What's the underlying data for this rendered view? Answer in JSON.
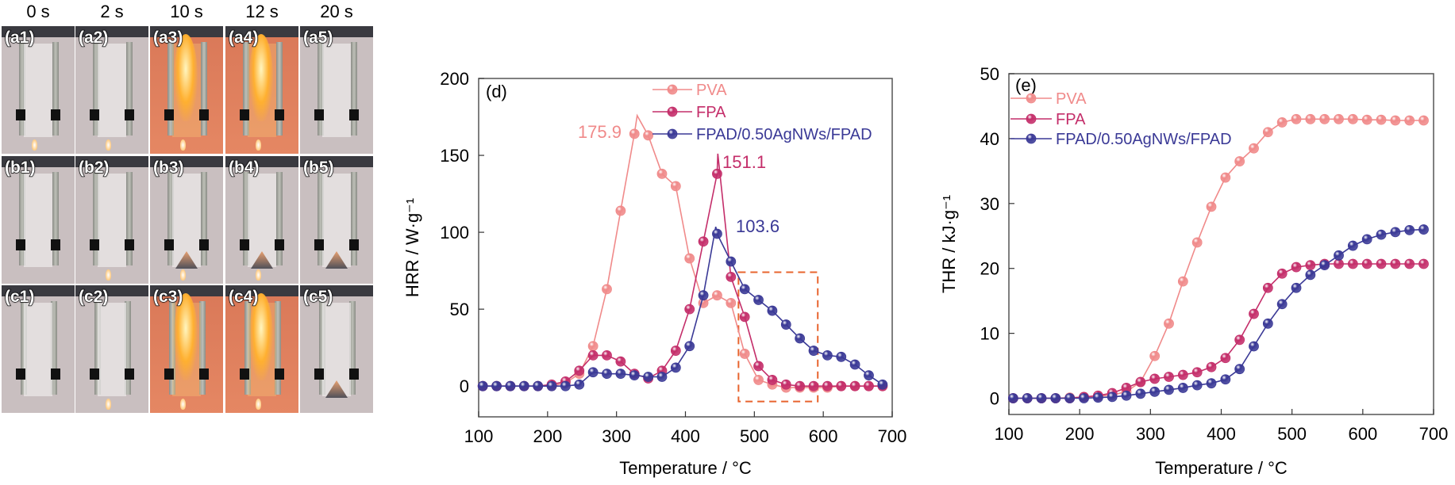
{
  "photo_panel": {
    "time_headers": [
      "0 s",
      "2 s",
      "10 s",
      "12 s",
      "20 s"
    ],
    "rows": [
      {
        "labels": [
          "(a1)",
          "(a2)",
          "(a3)",
          "(a4)",
          "(a5)"
        ]
      },
      {
        "labels": [
          "(b1)",
          "(b2)",
          "(b3)",
          "(b4)",
          "(b5)"
        ]
      },
      {
        "labels": [
          "(c1)",
          "(c2)",
          "(c3)",
          "(c4)",
          "(c5)"
        ]
      }
    ]
  },
  "colors": {
    "PVA": "#f08a8a",
    "FPA": "#c42e6a",
    "FPAD": "#3a3996",
    "highlight": "#e8642e"
  },
  "chart_data": [
    {
      "type": "line",
      "panel_label": "(d)",
      "xlabel": "Temperature / °C",
      "ylabel": "HRR / W·g⁻¹",
      "xlim": [
        100,
        700
      ],
      "ylim": [
        -20,
        200
      ],
      "xticks": [
        100,
        200,
        300,
        400,
        500,
        600,
        700
      ],
      "yticks": [
        0,
        50,
        100,
        150,
        200
      ],
      "grid": false,
      "legend_position": "top-center",
      "series": [
        {
          "name": "PVA",
          "key": "PVA",
          "points": [
            [
              106,
              0
            ],
            [
              126,
              0
            ],
            [
              146,
              0
            ],
            [
              166,
              0
            ],
            [
              186,
              0
            ],
            [
              206,
              0
            ],
            [
              226,
              2
            ],
            [
              246,
              8
            ],
            [
              266,
              26
            ],
            [
              286,
              63
            ],
            [
              306,
              114
            ],
            [
              326,
              164
            ],
            [
              346,
              163
            ],
            [
              366,
              138
            ],
            [
              386,
              130
            ],
            [
              406,
              83
            ],
            [
              426,
              54
            ],
            [
              446,
              59
            ],
            [
              466,
              54
            ],
            [
              486,
              21
            ],
            [
              506,
              4
            ],
            [
              526,
              1
            ],
            [
              546,
              -1
            ],
            [
              566,
              -1
            ],
            [
              586,
              -1
            ],
            [
              606,
              -1
            ],
            [
              626,
              0
            ],
            [
              646,
              0
            ],
            [
              666,
              0
            ],
            [
              686,
              0
            ]
          ],
          "peak": [
            330,
            175.9
          ]
        },
        {
          "name": "FPA",
          "key": "FPA",
          "points": [
            [
              106,
              0
            ],
            [
              126,
              0
            ],
            [
              146,
              0
            ],
            [
              166,
              0
            ],
            [
              186,
              0
            ],
            [
              206,
              1
            ],
            [
              226,
              3
            ],
            [
              246,
              10
            ],
            [
              266,
              20
            ],
            [
              286,
              20
            ],
            [
              306,
              16
            ],
            [
              326,
              8
            ],
            [
              346,
              5
            ],
            [
              366,
              10
            ],
            [
              386,
              23
            ],
            [
              406,
              50
            ],
            [
              426,
              94
            ],
            [
              446,
              138
            ],
            [
              466,
              71
            ],
            [
              486,
              45
            ],
            [
              506,
              13
            ],
            [
              526,
              4
            ],
            [
              546,
              1
            ],
            [
              566,
              0
            ],
            [
              586,
              0
            ],
            [
              606,
              0
            ],
            [
              626,
              0
            ],
            [
              646,
              0
            ],
            [
              666,
              0
            ],
            [
              686,
              0
            ]
          ],
          "peak": [
            447,
            151.1
          ]
        },
        {
          "name": "FPAD/0.50AgNWs/FPAD",
          "key": "FPAD",
          "points": [
            [
              106,
              0
            ],
            [
              126,
              0
            ],
            [
              146,
              0
            ],
            [
              166,
              0
            ],
            [
              186,
              0
            ],
            [
              206,
              0
            ],
            [
              226,
              0
            ],
            [
              246,
              1
            ],
            [
              266,
              9
            ],
            [
              286,
              8
            ],
            [
              306,
              8
            ],
            [
              326,
              7
            ],
            [
              346,
              6
            ],
            [
              366,
              6
            ],
            [
              386,
              12
            ],
            [
              406,
              26
            ],
            [
              426,
              59
            ],
            [
              446,
              99
            ],
            [
              466,
              81
            ],
            [
              486,
              63
            ],
            [
              506,
              56
            ],
            [
              526,
              49
            ],
            [
              546,
              40
            ],
            [
              566,
              31
            ],
            [
              586,
              23
            ],
            [
              606,
              20
            ],
            [
              626,
              19
            ],
            [
              646,
              14
            ],
            [
              666,
              7
            ],
            [
              686,
              1
            ]
          ],
          "peak": [
            444,
            103.6
          ]
        }
      ],
      "annotations": [
        {
          "text": "175.9",
          "series": "PVA"
        },
        {
          "text": "151.1",
          "series": "FPA"
        },
        {
          "text": "103.6",
          "series": "FPAD"
        }
      ],
      "highlight_box": {
        "x": [
          477,
          592
        ],
        "y": [
          -10,
          74
        ]
      }
    },
    {
      "type": "line",
      "panel_label": "(e)",
      "xlabel": "Temperature / °C",
      "ylabel": "THR / kJ·g⁻¹",
      "xlim": [
        100,
        700
      ],
      "ylim": [
        -2.5,
        50
      ],
      "xticks": [
        100,
        200,
        300,
        400,
        500,
        600,
        700
      ],
      "yticks": [
        0,
        10,
        20,
        30,
        40,
        50
      ],
      "grid": false,
      "legend_position": "top-left",
      "series": [
        {
          "name": "PVA",
          "key": "PVA",
          "points": [
            [
              106,
              0
            ],
            [
              126,
              0
            ],
            [
              146,
              0
            ],
            [
              166,
              0
            ],
            [
              186,
              0.1
            ],
            [
              206,
              0.2
            ],
            [
              226,
              0.3
            ],
            [
              246,
              0.5
            ],
            [
              266,
              1
            ],
            [
              286,
              2.5
            ],
            [
              306,
              6.5
            ],
            [
              326,
              11.5
            ],
            [
              346,
              18
            ],
            [
              366,
              24
            ],
            [
              386,
              29.5
            ],
            [
              406,
              34
            ],
            [
              426,
              36.5
            ],
            [
              446,
              38.5
            ],
            [
              466,
              41
            ],
            [
              486,
              42.5
            ],
            [
              506,
              43
            ],
            [
              526,
              43
            ],
            [
              546,
              43
            ],
            [
              566,
              43
            ],
            [
              586,
              43
            ],
            [
              606,
              42.9
            ],
            [
              626,
              42.9
            ],
            [
              646,
              42.8
            ],
            [
              666,
              42.8
            ],
            [
              686,
              42.8
            ]
          ]
        },
        {
          "name": "FPA",
          "key": "FPA",
          "points": [
            [
              106,
              0
            ],
            [
              126,
              0
            ],
            [
              146,
              0
            ],
            [
              166,
              0
            ],
            [
              186,
              0
            ],
            [
              206,
              0.2
            ],
            [
              226,
              0.4
            ],
            [
              246,
              0.8
            ],
            [
              266,
              1.6
            ],
            [
              286,
              2.5
            ],
            [
              306,
              3
            ],
            [
              326,
              3.3
            ],
            [
              346,
              3.6
            ],
            [
              366,
              4
            ],
            [
              386,
              4.8
            ],
            [
              406,
              6.2
            ],
            [
              426,
              9
            ],
            [
              446,
              13
            ],
            [
              466,
              17
            ],
            [
              486,
              19.2
            ],
            [
              506,
              20.2
            ],
            [
              526,
              20.5
            ],
            [
              546,
              20.7
            ],
            [
              566,
              20.7
            ],
            [
              586,
              20.7
            ],
            [
              606,
              20.7
            ],
            [
              626,
              20.7
            ],
            [
              646,
              20.7
            ],
            [
              666,
              20.7
            ],
            [
              686,
              20.7
            ]
          ]
        },
        {
          "name": "FPAD/0.50AgNWs/FPAD",
          "key": "FPAD",
          "points": [
            [
              106,
              0
            ],
            [
              126,
              0
            ],
            [
              146,
              0
            ],
            [
              166,
              0
            ],
            [
              186,
              0
            ],
            [
              206,
              0
            ],
            [
              226,
              0.1
            ],
            [
              246,
              0.2
            ],
            [
              266,
              0.4
            ],
            [
              286,
              0.7
            ],
            [
              306,
              1
            ],
            [
              326,
              1.3
            ],
            [
              346,
              1.6
            ],
            [
              366,
              2
            ],
            [
              386,
              2.3
            ],
            [
              406,
              2.9
            ],
            [
              426,
              4.5
            ],
            [
              446,
              8
            ],
            [
              466,
              11.5
            ],
            [
              486,
              14.5
            ],
            [
              506,
              17
            ],
            [
              526,
              19
            ],
            [
              546,
              20.5
            ],
            [
              566,
              22
            ],
            [
              586,
              23.5
            ],
            [
              606,
              24.5
            ],
            [
              626,
              25.2
            ],
            [
              646,
              25.6
            ],
            [
              666,
              25.9
            ],
            [
              686,
              26
            ]
          ]
        }
      ]
    }
  ]
}
